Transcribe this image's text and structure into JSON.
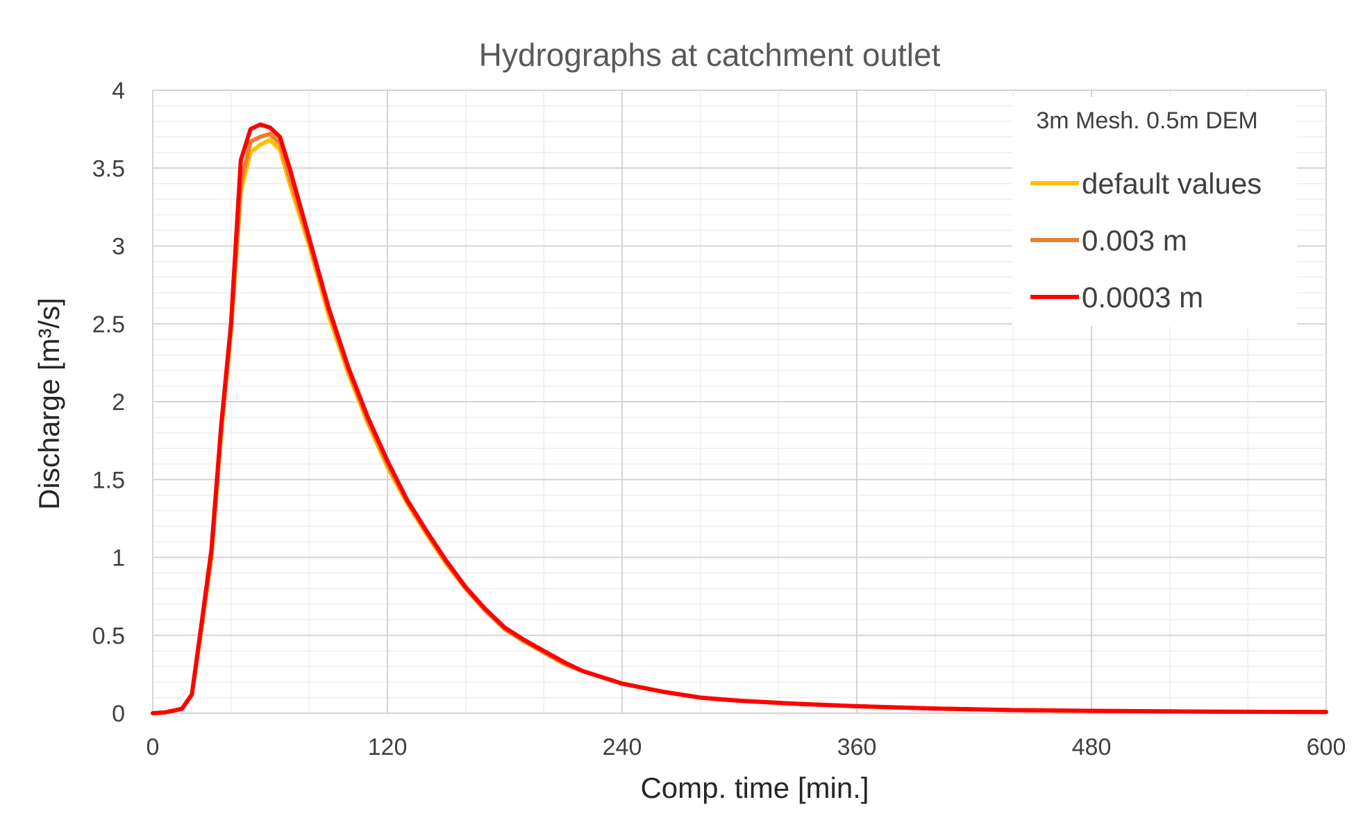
{
  "chart_data": {
    "type": "line",
    "title": "Hydrographs at catchment outlet",
    "xlabel": "Comp. time [min.]",
    "ylabel": "Discharge [m³/s]",
    "xlim": [
      0,
      600
    ],
    "ylim": [
      0,
      4
    ],
    "x_ticks": [
      "0",
      "120",
      "240",
      "360",
      "480",
      "600"
    ],
    "y_ticks": [
      "0",
      "0.5",
      "1",
      "1.5",
      "2",
      "2.5",
      "3",
      "3.5",
      "4"
    ],
    "grid": true,
    "legend": {
      "title": "3m Mesh. 0.5m DEM",
      "position": "top-right"
    },
    "x": [
      0,
      6,
      12,
      15,
      20,
      25,
      30,
      35,
      40,
      45,
      50,
      55,
      60,
      65,
      70,
      80,
      90,
      100,
      110,
      120,
      130,
      140,
      150,
      160,
      170,
      180,
      190,
      200,
      210,
      220,
      240,
      260,
      280,
      300,
      330,
      360,
      400,
      440,
      480,
      540,
      600
    ],
    "series": [
      {
        "name": "default values",
        "color": "#FFC000",
        "values": [
          0,
          0.005,
          0.02,
          0.03,
          0.12,
          0.55,
          1.0,
          1.8,
          2.45,
          3.35,
          3.6,
          3.65,
          3.68,
          3.62,
          3.4,
          3.0,
          2.55,
          2.18,
          1.86,
          1.58,
          1.35,
          1.15,
          0.96,
          0.8,
          0.66,
          0.54,
          0.46,
          0.39,
          0.32,
          0.27,
          0.19,
          0.14,
          0.1,
          0.08,
          0.06,
          0.045,
          0.03,
          0.02,
          0.015,
          0.01,
          0.008
        ]
      },
      {
        "name": "0.003 m",
        "color": "#ED7D31",
        "values": [
          0,
          0.005,
          0.02,
          0.03,
          0.12,
          0.56,
          1.02,
          1.82,
          2.48,
          3.4,
          3.67,
          3.7,
          3.72,
          3.66,
          3.44,
          3.03,
          2.58,
          2.2,
          1.88,
          1.6,
          1.36,
          1.16,
          0.97,
          0.8,
          0.66,
          0.54,
          0.46,
          0.39,
          0.32,
          0.27,
          0.19,
          0.14,
          0.1,
          0.08,
          0.06,
          0.045,
          0.03,
          0.02,
          0.015,
          0.01,
          0.008
        ]
      },
      {
        "name": "0.0003 m",
        "color": "#FF0000",
        "values": [
          0,
          0.005,
          0.02,
          0.03,
          0.12,
          0.58,
          1.05,
          1.85,
          2.5,
          3.55,
          3.75,
          3.78,
          3.76,
          3.7,
          3.5,
          3.05,
          2.6,
          2.22,
          1.9,
          1.62,
          1.37,
          1.17,
          0.98,
          0.81,
          0.67,
          0.55,
          0.47,
          0.4,
          0.33,
          0.27,
          0.19,
          0.14,
          0.1,
          0.08,
          0.06,
          0.045,
          0.03,
          0.02,
          0.015,
          0.01,
          0.008
        ]
      }
    ]
  }
}
